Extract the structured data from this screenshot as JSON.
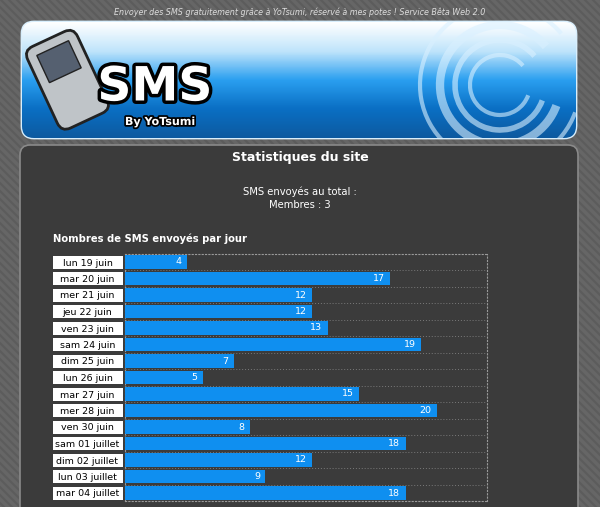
{
  "page": {
    "top_text": "Envoyer des SMS gratuitement grâce à YoTsumi, réservé à mes potes ! Service Bêta Web 2.0",
    "logo": "SMS",
    "logo_sub": "By YoTsumi",
    "heading": "Statistiques du site",
    "stats": [
      "SMS envoyés au total :",
      "Membres : 3"
    ]
  },
  "chart_data": {
    "type": "bar",
    "orientation": "horizontal",
    "title": "Nombres de SMS envoyés par jour",
    "categories": [
      "lun 19 juin",
      "mar 20 juin",
      "mer 21 juin",
      "jeu 22 juin",
      "ven 23 juin",
      "sam 24 juin",
      "dim 25 juin",
      "lun 26 juin",
      "mar 27 juin",
      "mer 28 juin",
      "ven 30 juin",
      "sam 01 juillet",
      "dim 02 juillet",
      "lun 03 juillet",
      "mar 04 juillet"
    ],
    "values": [
      4,
      17,
      12,
      12,
      13,
      19,
      7,
      5,
      15,
      20,
      8,
      18,
      12,
      9,
      18
    ],
    "color": "#0f8ff0",
    "xlim": [
      0,
      23.2
    ],
    "xticks": [],
    "data_labels": true,
    "tick_labels": "y",
    "grid": false
  }
}
